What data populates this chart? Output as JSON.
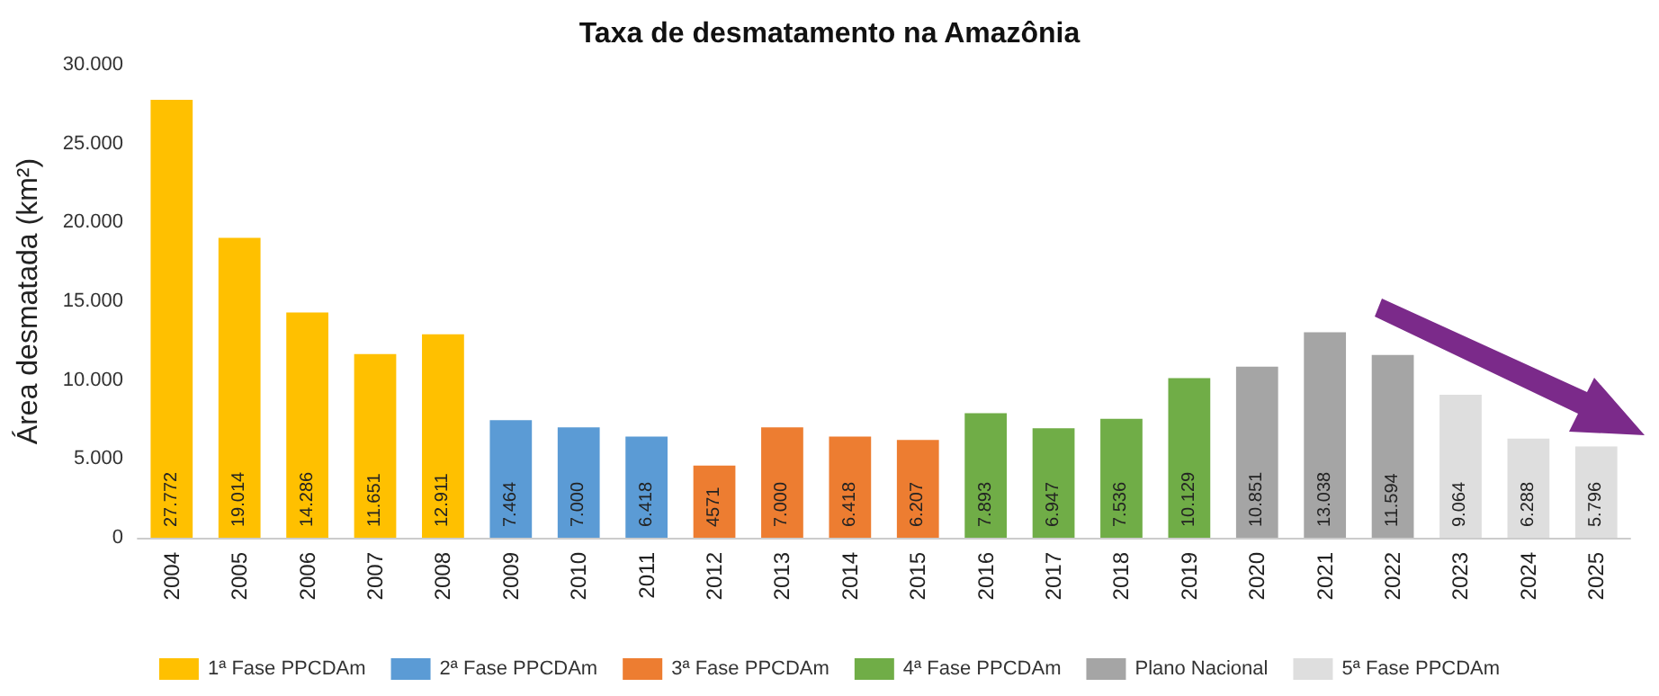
{
  "chart_data": {
    "type": "bar",
    "title": "Taxa de desmatamento na Amazônia",
    "ylabel": "Área desmatada (km²)",
    "categories": [
      "2004",
      "2005",
      "2006",
      "2007",
      "2008",
      "2009",
      "2010",
      "2011",
      "2012",
      "2013",
      "2014",
      "2015",
      "2016",
      "2017",
      "2018",
      "2019",
      "2020",
      "2021",
      "2022",
      "2023",
      "2024",
      "2025"
    ],
    "series": [
      {
        "name": "1ª Fase PPCDAm",
        "color": "#ffc000",
        "values": [
          27772,
          19014,
          14286,
          11651,
          12911,
          null,
          null,
          null,
          null,
          null,
          null,
          null,
          null,
          null,
          null,
          null,
          null,
          null,
          null,
          null,
          null,
          null
        ],
        "value_labels": [
          "27.772",
          "19.014",
          "14.286",
          "11.651",
          "12.911",
          null,
          null,
          null,
          null,
          null,
          null,
          null,
          null,
          null,
          null,
          null,
          null,
          null,
          null,
          null,
          null,
          null
        ]
      },
      {
        "name": "2ª Fase PPCDAm",
        "color": "#5b9bd5",
        "values": [
          null,
          null,
          null,
          null,
          null,
          7464,
          7000,
          6418,
          null,
          null,
          null,
          null,
          null,
          null,
          null,
          null,
          null,
          null,
          null,
          null,
          null,
          null
        ],
        "value_labels": [
          null,
          null,
          null,
          null,
          null,
          "7.464",
          "7.000",
          "6.418",
          null,
          null,
          null,
          null,
          null,
          null,
          null,
          null,
          null,
          null,
          null,
          null,
          null,
          null
        ]
      },
      {
        "name": "3ª Fase PPCDAm",
        "color": "#ed7d31",
        "values": [
          null,
          null,
          null,
          null,
          null,
          null,
          null,
          null,
          4571,
          7000,
          6418,
          6207,
          null,
          null,
          null,
          null,
          null,
          null,
          null,
          null,
          null,
          null
        ],
        "value_labels": [
          null,
          null,
          null,
          null,
          null,
          null,
          null,
          null,
          "4571",
          "7.000",
          "6.418",
          "6.207",
          null,
          null,
          null,
          null,
          null,
          null,
          null,
          null,
          null,
          null
        ]
      },
      {
        "name": "4ª Fase PPCDAm",
        "color": "#70ad47",
        "values": [
          null,
          null,
          null,
          null,
          null,
          null,
          null,
          null,
          null,
          null,
          null,
          null,
          7893,
          6947,
          7536,
          10129,
          null,
          null,
          null,
          null,
          null,
          null
        ],
        "value_labels": [
          null,
          null,
          null,
          null,
          null,
          null,
          null,
          null,
          null,
          null,
          null,
          null,
          "7.893",
          "6.947",
          "7.536",
          "10.129",
          null,
          null,
          null,
          null,
          null,
          null
        ]
      },
      {
        "name": "Plano Nacional",
        "color": "#a5a5a5",
        "values": [
          null,
          null,
          null,
          null,
          null,
          null,
          null,
          null,
          null,
          null,
          null,
          null,
          null,
          null,
          null,
          null,
          10851,
          13038,
          11594,
          null,
          null,
          null
        ],
        "value_labels": [
          null,
          null,
          null,
          null,
          null,
          null,
          null,
          null,
          null,
          null,
          null,
          null,
          null,
          null,
          null,
          null,
          "10.851",
          "13.038",
          "11.594",
          null,
          null,
          null
        ]
      },
      {
        "name": "5ª Fase PPCDAm",
        "color": "#dedede",
        "values": [
          null,
          null,
          null,
          null,
          null,
          null,
          null,
          null,
          null,
          null,
          null,
          null,
          null,
          null,
          null,
          null,
          null,
          null,
          null,
          9064,
          6288,
          5796
        ],
        "value_labels": [
          null,
          null,
          null,
          null,
          null,
          null,
          null,
          null,
          null,
          null,
          null,
          null,
          null,
          null,
          null,
          null,
          null,
          null,
          null,
          "9.064",
          "6.288",
          "5.796"
        ]
      }
    ],
    "ylim": [
      0,
      30000
    ],
    "yticks": [
      {
        "value": 0,
        "label": "0"
      },
      {
        "value": 5000,
        "label": "5.000"
      },
      {
        "value": 10000,
        "label": "10.000"
      },
      {
        "value": 15000,
        "label": "15.000"
      },
      {
        "value": 20000,
        "label": "20.000"
      },
      {
        "value": 25000,
        "label": "25.000"
      },
      {
        "value": 30000,
        "label": "30.000"
      }
    ],
    "grid": false,
    "legend": "bottom"
  }
}
